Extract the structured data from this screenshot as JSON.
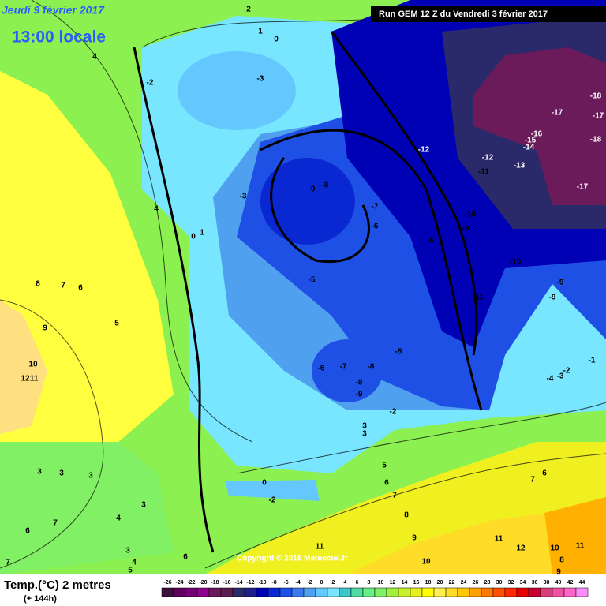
{
  "header": {
    "date": "Jeudi 9 février 2017",
    "time": "13:00 locale",
    "run": "Run GEM 12 Z du Vendredi 3 février 2017"
  },
  "footer": {
    "title": "Temp.(°C) 2 metres",
    "lead": "(+ 144h)",
    "copyright": "Copyright © 2016 Meteociel.fr"
  },
  "colorbar": {
    "ticks": [
      -26,
      -24,
      -22,
      -20,
      -18,
      -16,
      -14,
      -12,
      -10,
      -8,
      -6,
      -4,
      -2,
      0,
      2,
      4,
      6,
      8,
      10,
      12,
      14,
      16,
      18,
      20,
      22,
      24,
      26,
      28,
      30,
      32,
      34,
      36,
      38,
      40,
      42,
      44
    ],
    "colors": [
      "#3d0f3d",
      "#5c005c",
      "#770077",
      "#8f008f",
      "#6b1a5a",
      "#5a1f4f",
      "#2a2a6a",
      "#1e1e8c",
      "#0000b4",
      "#0a28d2",
      "#1e50e6",
      "#3c78f0",
      "#50a0f0",
      "#64c8ff",
      "#78e6ff",
      "#3cc8c8",
      "#50dca0",
      "#64f082",
      "#82f064",
      "#a0f03c",
      "#c8f028",
      "#e6f01e",
      "#ffff00",
      "#fff050",
      "#ffdc28",
      "#ffc800",
      "#ffa000",
      "#ff7800",
      "#ff5000",
      "#ff2800",
      "#e60000",
      "#c80032",
      "#dc3c78",
      "#f050a0",
      "#ff64c8",
      "#ff8cff"
    ]
  },
  "contour_labels": [
    "2",
    "1",
    "0",
    "4",
    "-2",
    "-3",
    "4",
    "-3",
    "0",
    "1",
    "-9",
    "-8",
    "-7",
    "-6",
    "-8",
    "-5",
    "-12",
    "-12",
    "-11",
    "-13",
    "-10",
    "-9",
    "-10",
    "-11",
    "-9",
    "-9",
    "-17",
    "-16",
    "-15",
    "-14",
    "-17",
    "-18",
    "-17",
    "-18",
    "-1",
    "-2",
    "-3",
    "-4",
    "-6",
    "-7",
    "-8",
    "-8",
    "-9",
    "-5",
    "-2",
    "3",
    "3",
    "5",
    "6",
    "7",
    "8",
    "9",
    "10",
    "11",
    "11",
    "12",
    "10",
    "11",
    "9",
    "8",
    "6",
    "7",
    "0",
    "-2",
    "8",
    "7",
    "6",
    "5",
    "9",
    "10",
    "12",
    "11",
    "3",
    "3",
    "3",
    "3",
    "4",
    "7",
    "6",
    "3",
    "4",
    "5",
    "7",
    "6"
  ]
}
